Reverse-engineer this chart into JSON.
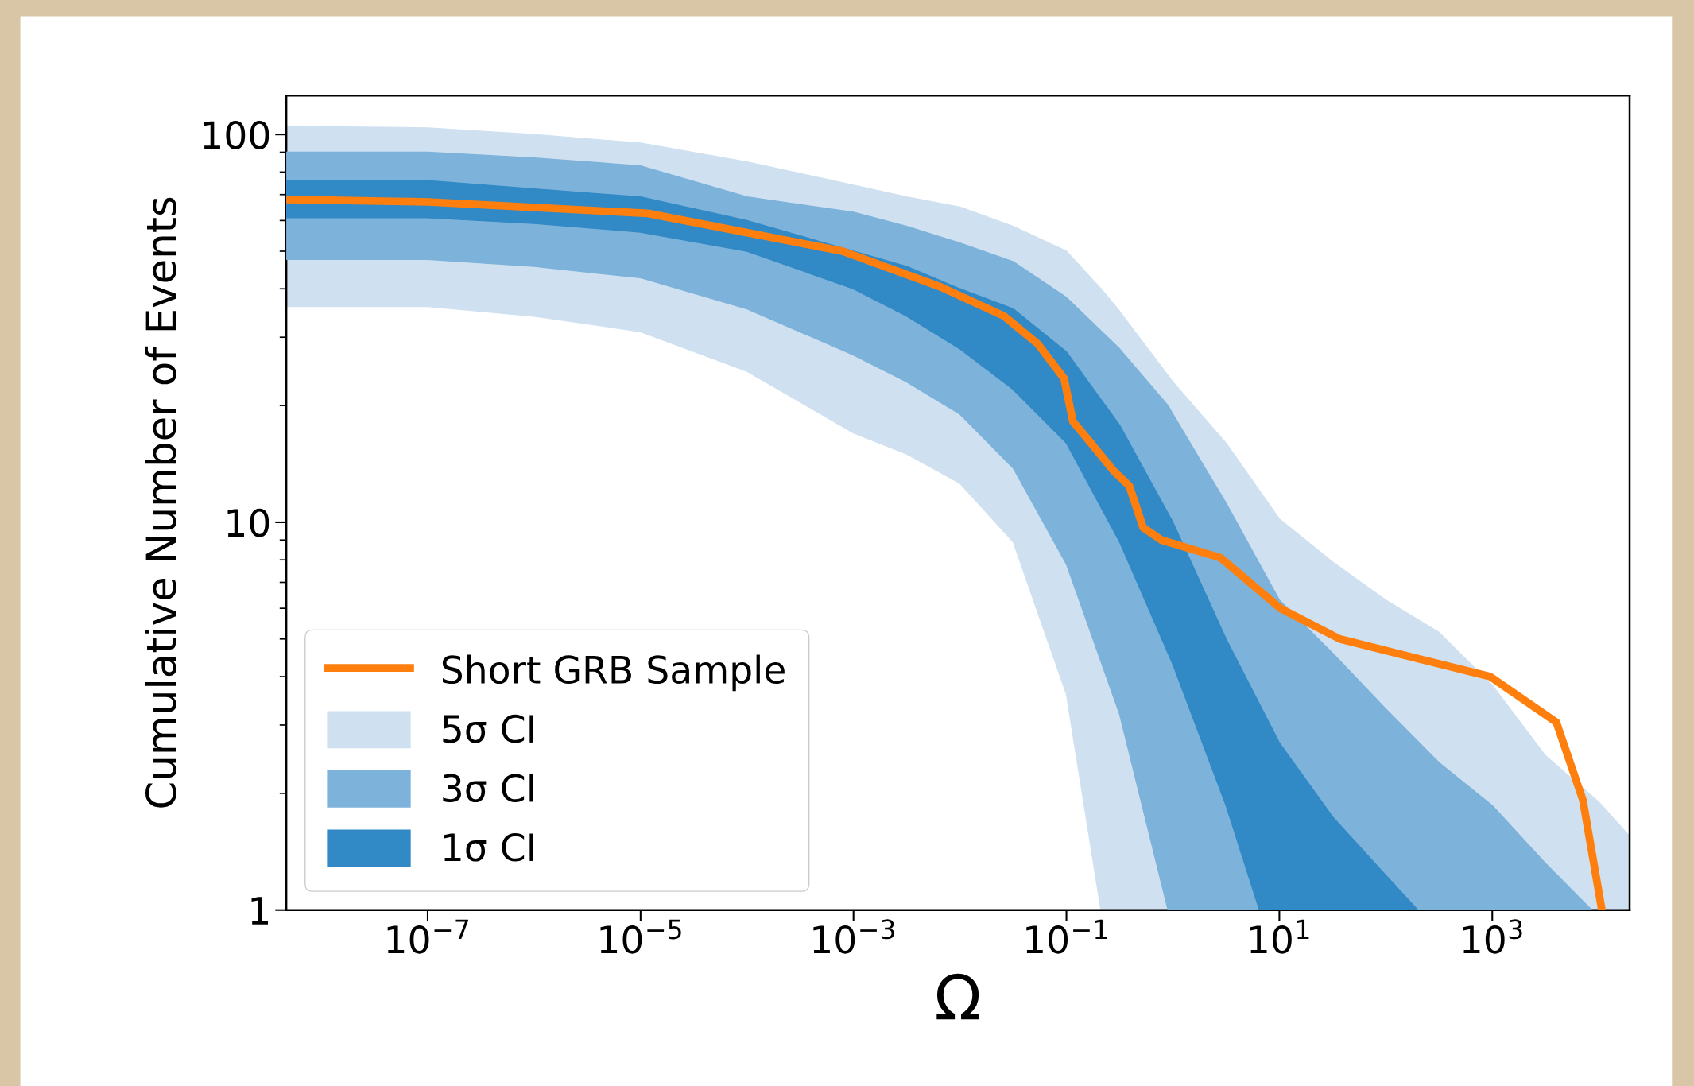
{
  "chart_data": {
    "type": "line",
    "xlabel": "Ω",
    "ylabel": "Cumulative Number of Events",
    "log": "xy",
    "xlim": [
      4.7e-09,
      19500
    ],
    "ylim": [
      1,
      126
    ],
    "xticks": [
      {
        "value": 1e-07,
        "label": "10$^{−7}$"
      },
      {
        "value": 1e-05,
        "label": "10$^{−5}$"
      },
      {
        "value": 0.001,
        "label": "10$^{−3}$"
      },
      {
        "value": 0.1,
        "label": "10$^{−1}$"
      },
      {
        "value": 10,
        "label": "10$^{1}$"
      },
      {
        "value": 1000,
        "label": "10$^{3}$"
      }
    ],
    "yticks": [
      1,
      10,
      100
    ],
    "legend": "lower left",
    "grid": false,
    "series": [
      {
        "type": "area",
        "name": "5σ CI",
        "color": "#cfe1f1",
        "x": [
          4.7e-09,
          1e-07,
          1e-06,
          1e-05,
          0.0001,
          0.001,
          0.00316,
          0.01,
          0.0316,
          0.1,
          0.211,
          0.316,
          1,
          3.16,
          10,
          31.6,
          100,
          316,
          1000,
          3162,
          10000,
          19500
        ],
        "values": [
          null,
          null,
          null,
          null,
          null,
          null,
          null,
          null,
          null,
          null,
          null,
          null,
          null,
          null,
          null,
          null,
          null,
          null,
          null,
          null,
          null,
          null
        ],
        "upper": [
          105,
          104,
          100,
          95,
          85,
          74,
          69,
          65,
          58,
          50,
          40,
          35,
          23,
          16,
          10.2,
          7.9,
          6.3,
          5.2,
          3.8,
          2.5,
          1.9,
          1.55
        ],
        "lower": [
          36,
          36,
          34,
          31,
          24.5,
          17,
          15,
          12.6,
          8.9,
          3.6,
          1,
          1,
          1,
          1,
          1,
          1,
          1,
          1,
          1,
          1,
          1,
          1
        ]
      },
      {
        "type": "area",
        "name": "3σ CI",
        "color": "#7db2da",
        "x": [
          4.7e-09,
          1e-07,
          1e-06,
          1e-05,
          0.0001,
          0.001,
          0.00316,
          0.01,
          0.0316,
          0.1,
          0.316,
          0.9,
          1,
          3.16,
          10,
          31.6,
          100,
          316,
          1000,
          3162,
          8610
        ],
        "values": [
          null,
          null,
          null,
          null,
          null,
          null,
          null,
          null,
          null,
          null,
          null,
          null,
          null,
          null,
          null,
          null,
          null,
          null,
          null,
          null,
          null
        ],
        "upper": [
          90,
          90,
          87,
          83,
          69,
          63,
          58,
          52.5,
          47,
          38,
          28,
          20,
          19,
          11.2,
          6.3,
          4.6,
          3.3,
          2.4,
          1.86,
          1.32,
          1
        ],
        "lower": [
          47.6,
          47.6,
          45.7,
          42.7,
          35.5,
          27,
          23,
          19,
          13.8,
          7.8,
          3.2,
          1,
          1,
          1,
          1,
          1,
          1,
          1,
          1,
          1,
          1
        ]
      },
      {
        "type": "area",
        "name": "1σ CI",
        "color": "#3189c5",
        "x": [
          4.7e-09,
          1e-07,
          1e-06,
          1e-05,
          0.0001,
          0.001,
          0.00316,
          0.01,
          0.0316,
          0.1,
          0.316,
          1,
          3.16,
          6.5,
          10,
          31.6,
          100,
          200
        ],
        "values": [
          null,
          null,
          null,
          null,
          null,
          null,
          null,
          null,
          null,
          null,
          null,
          null,
          null,
          null,
          null,
          null,
          null,
          null
        ],
        "upper": [
          76,
          76,
          72.4,
          69,
          60,
          50,
          45.7,
          40,
          35.5,
          27.5,
          17.8,
          10,
          5.0,
          3.4,
          2.7,
          1.74,
          1.23,
          1
        ],
        "lower": [
          61,
          61,
          59,
          56,
          50,
          40,
          34,
          28,
          22,
          16,
          8.9,
          4.3,
          1.86,
          1,
          1,
          1,
          1,
          1
        ]
      },
      {
        "type": "line",
        "name": "Short GRB Sample",
        "color": "#ff7f0e",
        "x": [
          4.7e-09,
          1e-07,
          1.17e-05,
          0.00079,
          0.0065,
          0.026,
          0.054,
          0.095,
          0.115,
          0.17,
          0.275,
          0.39,
          0.525,
          0.78,
          2.8,
          10.2,
          37,
          955,
          4000,
          7100,
          10700
        ],
        "values": [
          68,
          67,
          62.6,
          50,
          40.5,
          34,
          28.8,
          23.5,
          18.2,
          16,
          13.6,
          12.4,
          9.7,
          9.0,
          8.1,
          6.0,
          5.0,
          4.0,
          3.05,
          1.92,
          1
        ]
      }
    ]
  }
}
